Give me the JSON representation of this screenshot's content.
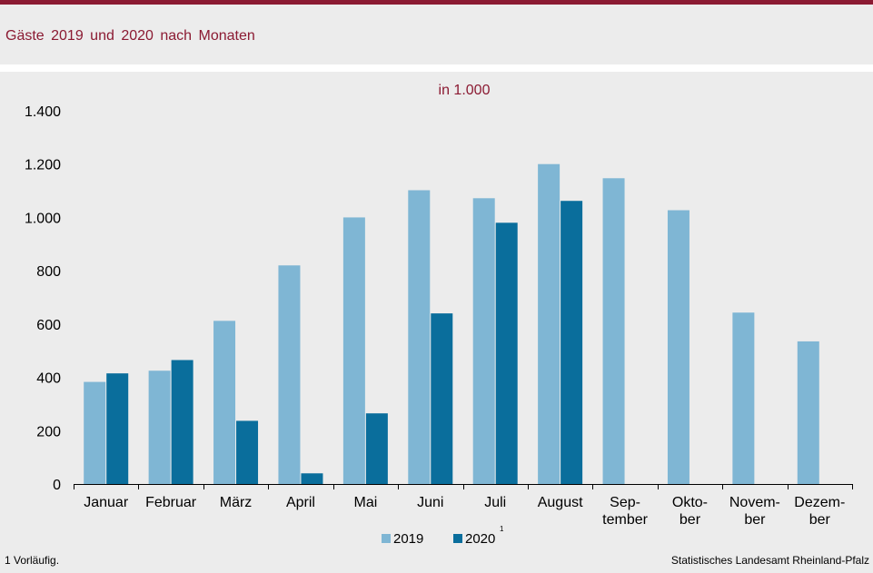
{
  "header": {
    "title": "Gäste 2019 und 2020 nach Monaten"
  },
  "footer": {
    "footnote": "1 Vorläufig.",
    "source": "Statistisches Landesamt Rheinland-Pfalz"
  },
  "colors": {
    "brand": "#8b1a32",
    "series_2019": "#7fb6d4",
    "series_2020": "#0a6e9c"
  },
  "chart_data": {
    "type": "bar",
    "unit_label": "in 1.000",
    "categories": [
      [
        "Januar"
      ],
      [
        "Februar"
      ],
      [
        "März"
      ],
      [
        "April"
      ],
      [
        "Mai"
      ],
      [
        "Juni"
      ],
      [
        "Juli"
      ],
      [
        "August"
      ],
      [
        "Sep-",
        "tember"
      ],
      [
        "Okto-",
        "ber"
      ],
      [
        "Novem-",
        "ber"
      ],
      [
        "Dezem-",
        "ber"
      ]
    ],
    "series": [
      {
        "name": "2019",
        "values": [
          383,
          425,
          612,
          820,
          1000,
          1102,
          1072,
          1200,
          1147,
          1027,
          643,
          535
        ]
      },
      {
        "name": "2020",
        "footnote_mark": "1",
        "values": [
          415,
          465,
          237,
          40,
          265,
          640,
          980,
          1062,
          null,
          null,
          null,
          null
        ]
      }
    ],
    "ylim": [
      0,
      1400
    ],
    "yticks": [
      0,
      200,
      400,
      600,
      800,
      1000,
      1200,
      1400
    ],
    "ytick_labels": [
      "0",
      "200",
      "400",
      "600",
      "800",
      "1.000",
      "1.200",
      "1.400"
    ],
    "grid": false,
    "legend_position": "bottom-center"
  }
}
